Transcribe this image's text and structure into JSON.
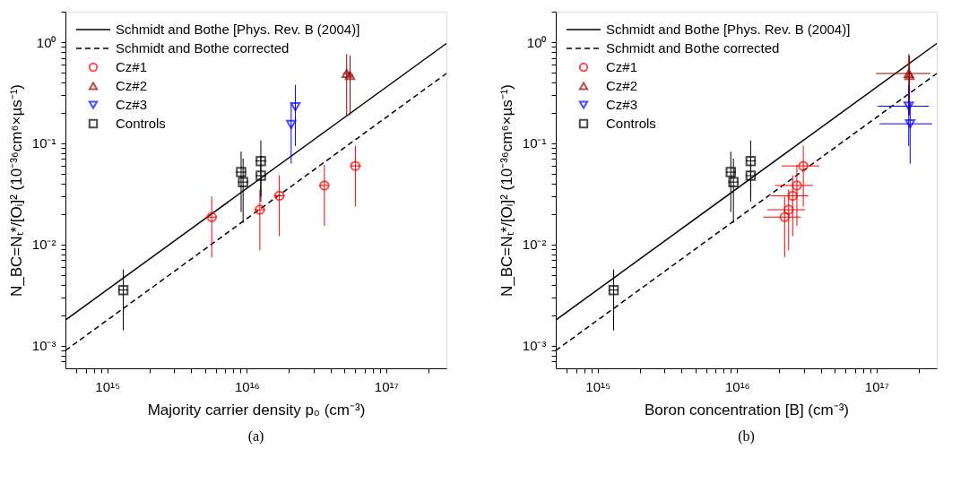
{
  "chart_data": [
    {
      "type": "scatter",
      "title": "(a)",
      "xlabel": "Majority carrier density p₀ (cm⁻³)",
      "ylabel": "N_BC=Nₜ*/[Oᵢ]² (10⁻³⁶cm⁶×µs⁻¹)",
      "log": "xy",
      "grid": false,
      "legend": "top left",
      "xlim": [
        500000000000000.0,
        2.7e+17
      ],
      "ylim": [
        0.0006,
        2
      ],
      "xticks": [
        {
          "value": 600000000000000.0,
          "label": null
        },
        {
          "value": 700000000000000.0,
          "label": null
        },
        {
          "value": 800000000000000.0,
          "label": null
        },
        {
          "value": 900000000000000.0,
          "label": null
        },
        {
          "value": 1000000000000000.0,
          "label": "10¹⁵"
        },
        {
          "value": 2000000000000000.0,
          "label": null
        },
        {
          "value": 3000000000000000.0,
          "label": null
        },
        {
          "value": 4000000000000000.0,
          "label": null
        },
        {
          "value": 5000000000000000.0,
          "label": null
        },
        {
          "value": 6000000000000000.0,
          "label": null
        },
        {
          "value": 7000000000000000.0,
          "label": null
        },
        {
          "value": 8000000000000000.0,
          "label": null
        },
        {
          "value": 9000000000000000.0,
          "label": null
        },
        {
          "value": 1e+16,
          "label": "10¹⁶"
        },
        {
          "value": 2e+16,
          "label": null
        },
        {
          "value": 3e+16,
          "label": null
        },
        {
          "value": 4e+16,
          "label": null
        },
        {
          "value": 5e+16,
          "label": null
        },
        {
          "value": 6e+16,
          "label": null
        },
        {
          "value": 7e+16,
          "label": null
        },
        {
          "value": 8e+16,
          "label": null
        },
        {
          "value": 9e+16,
          "label": null
        },
        {
          "value": 1e+17,
          "label": "10¹⁷"
        },
        {
          "value": 2e+17,
          "label": null
        }
      ],
      "yticks": [
        {
          "value": 0.0007,
          "label": null
        },
        {
          "value": 0.0008,
          "label": null
        },
        {
          "value": 0.0009,
          "label": null
        },
        {
          "value": 0.001,
          "label": "10⁻³"
        },
        {
          "value": 0.002,
          "label": null
        },
        {
          "value": 0.003,
          "label": null
        },
        {
          "value": 0.004,
          "label": null
        },
        {
          "value": 0.005,
          "label": null
        },
        {
          "value": 0.006,
          "label": null
        },
        {
          "value": 0.007,
          "label": null
        },
        {
          "value": 0.008,
          "label": null
        },
        {
          "value": 0.009,
          "label": null
        },
        {
          "value": 0.01,
          "label": "10⁻²"
        },
        {
          "value": 0.02,
          "label": null
        },
        {
          "value": 0.03,
          "label": null
        },
        {
          "value": 0.04,
          "label": null
        },
        {
          "value": 0.05,
          "label": null
        },
        {
          "value": 0.06,
          "label": null
        },
        {
          "value": 0.07,
          "label": null
        },
        {
          "value": 0.08,
          "label": null
        },
        {
          "value": 0.09,
          "label": null
        },
        {
          "value": 0.1,
          "label": "10⁻¹"
        },
        {
          "value": 0.2,
          "label": null
        },
        {
          "value": 0.3,
          "label": null
        },
        {
          "value": 0.4,
          "label": null
        },
        {
          "value": 0.5,
          "label": null
        },
        {
          "value": 0.6,
          "label": null
        },
        {
          "value": 0.7,
          "label": null
        },
        {
          "value": 0.8,
          "label": null
        },
        {
          "value": 0.9,
          "label": null
        },
        {
          "value": 1,
          "label": "10⁰"
        },
        {
          "value": 2,
          "label": null
        }
      ],
      "series": [
        {
          "name": "Schmidt and Bothe [Phys. Rev. B (2004)]",
          "type": "line",
          "color": "#000000",
          "line_style": "solid",
          "marker": "none",
          "x": [
            500000000000000.0,
            2.7e+17
          ],
          "values": [
            0.0018,
            0.97
          ]
        },
        {
          "name": "Schmidt and Bothe corrected",
          "type": "line",
          "color": "#000000",
          "line_style": "dashed",
          "marker": "none",
          "x": [
            500000000000000.0,
            2.7e+17
          ],
          "values": [
            0.0009,
            0.49
          ]
        },
        {
          "name": "Cz#1",
          "color": "#ff0000",
          "marker": "circle",
          "x": [
            5600000000000000.0,
            1.24e+16,
            1.71e+16,
            3.6e+16,
            6e+16
          ],
          "values": [
            0.0187,
            0.0221,
            0.0304,
            0.0384,
            0.0599
          ],
          "errors": [
            [
              0.0075,
              0.0298
            ],
            [
              0.0088,
              0.035
            ],
            [
              0.0121,
              0.0484
            ],
            [
              0.0153,
              0.0615
            ],
            [
              0.0238,
              0.0948
            ]
          ],
          "xerrors": [
            [
              5100000000000000.0,
              6100000000000000.0
            ],
            [
              1.13e+16,
              1.35e+16
            ],
            [
              1.56e+16,
              1.87e+16
            ],
            [
              3.3e+16,
              3.9e+16
            ],
            [
              5.5e+16,
              6.6e+16
            ]
          ]
        },
        {
          "name": "Cz#2",
          "color": "#990000",
          "marker": "triangle",
          "x": [
            5.2e+16,
            5.5e+16
          ],
          "values": [
            0.49,
            0.47
          ],
          "errors": [
            [
              0.19,
              0.76
            ],
            [
              0.19,
              0.74
            ]
          ],
          "xerrors": [
            [
              4.9e+16,
              5.5e+16
            ],
            [
              5.2e+16,
              5.8e+16
            ]
          ]
        },
        {
          "name": "Cz#3",
          "color": "#0000ff",
          "marker": "triangle-down",
          "x": [
            2.23e+16,
            2.08e+16
          ],
          "values": [
            0.23,
            0.154
          ],
          "errors": [
            [
              0.094,
              0.379
            ],
            [
              0.063,
              0.25
            ]
          ]
        },
        {
          "name": "Controls",
          "color": "#000000",
          "marker": "square",
          "x": [
            1300000000000000.0,
            9100000000000000.0,
            9400000000000000.0,
            1.26e+16,
            1.26e+16
          ],
          "values": [
            0.00356,
            0.052,
            0.0415,
            0.067,
            0.048
          ],
          "errors": [
            [
              0.00142,
              0.00568
            ],
            [
              0.021,
              0.083
            ],
            [
              0.0164,
              0.0708
            ],
            [
              0.0298,
              0.107
            ],
            [
              0.0266,
              0.075
            ]
          ],
          "xerrors": [
            [
              1200000000000000.0,
              1400000000000000.0
            ],
            [
              8300000000000000.0,
              9900000000000000.0
            ],
            [
              8600000000000000.0,
              1.03e+16
            ],
            [
              1.15e+16,
              1.38e+16
            ],
            [
              1.15e+16,
              1.38e+16
            ]
          ]
        }
      ]
    },
    {
      "type": "scatter",
      "title": "(b)",
      "xlabel": "Boron concentration [B] (cm⁻³)",
      "ylabel": "N_BC=Nₜ*/[Oᵢ]² (10⁻³⁶cm⁶×µs⁻¹)",
      "log": "xy",
      "grid": false,
      "legend": "top left",
      "xlim": [
        500000000000000.0,
        2.7e+17
      ],
      "ylim": [
        0.0006,
        2
      ],
      "xticks": [
        {
          "value": 600000000000000.0,
          "label": null
        },
        {
          "value": 700000000000000.0,
          "label": null
        },
        {
          "value": 800000000000000.0,
          "label": null
        },
        {
          "value": 900000000000000.0,
          "label": null
        },
        {
          "value": 1000000000000000.0,
          "label": "10¹⁵"
        },
        {
          "value": 2000000000000000.0,
          "label": null
        },
        {
          "value": 3000000000000000.0,
          "label": null
        },
        {
          "value": 4000000000000000.0,
          "label": null
        },
        {
          "value": 5000000000000000.0,
          "label": null
        },
        {
          "value": 6000000000000000.0,
          "label": null
        },
        {
          "value": 7000000000000000.0,
          "label": null
        },
        {
          "value": 8000000000000000.0,
          "label": null
        },
        {
          "value": 9000000000000000.0,
          "label": null
        },
        {
          "value": 1e+16,
          "label": "10¹⁶"
        },
        {
          "value": 2e+16,
          "label": null
        },
        {
          "value": 3e+16,
          "label": null
        },
        {
          "value": 4e+16,
          "label": null
        },
        {
          "value": 5e+16,
          "label": null
        },
        {
          "value": 6e+16,
          "label": null
        },
        {
          "value": 7e+16,
          "label": null
        },
        {
          "value": 8e+16,
          "label": null
        },
        {
          "value": 9e+16,
          "label": null
        },
        {
          "value": 1e+17,
          "label": "10¹⁷"
        },
        {
          "value": 2e+17,
          "label": null
        }
      ],
      "yticks": [
        {
          "value": 0.0007,
          "label": null
        },
        {
          "value": 0.0008,
          "label": null
        },
        {
          "value": 0.0009,
          "label": null
        },
        {
          "value": 0.001,
          "label": "10⁻³"
        },
        {
          "value": 0.002,
          "label": null
        },
        {
          "value": 0.003,
          "label": null
        },
        {
          "value": 0.004,
          "label": null
        },
        {
          "value": 0.005,
          "label": null
        },
        {
          "value": 0.006,
          "label": null
        },
        {
          "value": 0.007,
          "label": null
        },
        {
          "value": 0.008,
          "label": null
        },
        {
          "value": 0.009,
          "label": null
        },
        {
          "value": 0.01,
          "label": "10⁻²"
        },
        {
          "value": 0.02,
          "label": null
        },
        {
          "value": 0.03,
          "label": null
        },
        {
          "value": 0.04,
          "label": null
        },
        {
          "value": 0.05,
          "label": null
        },
        {
          "value": 0.06,
          "label": null
        },
        {
          "value": 0.07,
          "label": null
        },
        {
          "value": 0.08,
          "label": null
        },
        {
          "value": 0.09,
          "label": null
        },
        {
          "value": 0.1,
          "label": "10⁻¹"
        },
        {
          "value": 0.2,
          "label": null
        },
        {
          "value": 0.3,
          "label": null
        },
        {
          "value": 0.4,
          "label": null
        },
        {
          "value": 0.5,
          "label": null
        },
        {
          "value": 0.6,
          "label": null
        },
        {
          "value": 0.7,
          "label": null
        },
        {
          "value": 0.8,
          "label": null
        },
        {
          "value": 0.9,
          "label": null
        },
        {
          "value": 1,
          "label": "10⁰"
        },
        {
          "value": 2,
          "label": null
        }
      ],
      "series": [
        {
          "name": "Schmidt and Bothe [Phys. Rev. B (2004)]",
          "type": "line",
          "color": "#000000",
          "line_style": "solid",
          "marker": "none",
          "x": [
            500000000000000.0,
            2.7e+17
          ],
          "values": [
            0.0018,
            0.97
          ]
        },
        {
          "name": "Schmidt and Bothe corrected",
          "type": "line",
          "color": "#000000",
          "line_style": "dashed",
          "marker": "none",
          "x": [
            500000000000000.0,
            2.7e+17
          ],
          "values": [
            0.0009,
            0.49
          ]
        },
        {
          "name": "Cz#1",
          "color": "#ff0000",
          "marker": "circle",
          "x": [
            2.19e+16,
            2.34e+16,
            2.5e+16,
            2.68e+16,
            2.98e+16
          ],
          "values": [
            0.0187,
            0.0221,
            0.0304,
            0.0384,
            0.0599
          ],
          "errors": [
            [
              0.0075,
              0.0298
            ],
            [
              0.0088,
              0.035
            ],
            [
              0.0121,
              0.0484
            ],
            [
              0.0153,
              0.0615
            ],
            [
              0.0238,
              0.0948
            ]
          ],
          "xerrors": [
            [
              1.54e+16,
              2.86e+16
            ],
            [
              1.64e+16,
              3.07e+16
            ],
            [
              1.74e+16,
              3.25e+16
            ],
            [
              1.87e+16,
              3.49e+16
            ],
            [
              2.08e+16,
              3.89e+16
            ]
          ]
        },
        {
          "name": "Cz#2",
          "color": "#990000",
          "marker": "triangle",
          "x": [
            1.7e+17,
            1.72e+17
          ],
          "values": [
            0.49,
            0.47
          ],
          "errors": [
            [
              0.19,
              0.76
            ],
            [
              0.19,
              0.74
            ]
          ],
          "xerrors": [
            [
              9.9e+16,
              2.43e+17
            ],
            null
          ]
        },
        {
          "name": "Cz#3",
          "color": "#0000ff",
          "marker": "triangle-down",
          "x": [
            1.7e+17,
            1.74e+17
          ],
          "values": [
            0.233,
            0.156
          ],
          "errors": [
            [
              0.094,
              0.379
            ],
            [
              0.063,
              0.25
            ]
          ],
          "xerrors": [
            [
              1.02e+17,
              2.37e+17
            ],
            [
              1.05e+17,
              2.5e+17
            ]
          ]
        },
        {
          "name": "Controls",
          "color": "#000000",
          "marker": "square",
          "x": [
            1300000000000000.0,
            9000000000000000.0,
            9400000000000000.0,
            1.25e+16,
            1.25e+16
          ],
          "values": [
            0.00356,
            0.052,
            0.0415,
            0.067,
            0.048
          ],
          "errors": [
            [
              0.00142,
              0.00568
            ],
            [
              0.021,
              0.083
            ],
            [
              0.0164,
              0.0708
            ],
            [
              0.0298,
              0.107
            ],
            [
              0.0266,
              0.075
            ]
          ],
          "xerrors": [
            [
              1200000000000000.0,
              1400000000000000.0
            ],
            [
              8300000000000000.0,
              9800000000000000.0
            ],
            [
              8600000000000000.0,
              1.02e+16
            ],
            [
              1.15e+16,
              1.36e+16
            ],
            [
              1.15e+16,
              1.36e+16
            ]
          ]
        }
      ]
    }
  ]
}
